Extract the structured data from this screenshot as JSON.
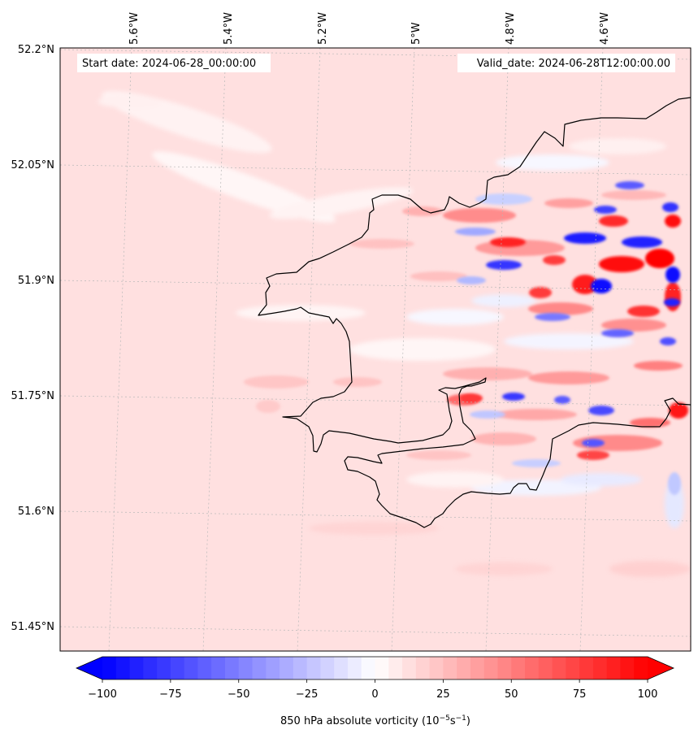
{
  "header": {
    "start_label": "Start date: 2024-06-28_00:00:00",
    "valid_label": "Valid_date: 2024-06-28T12:00:00.00"
  },
  "map": {
    "lon_labels": [
      "5.6°W",
      "5.4°W",
      "5.2°W",
      "5°W",
      "4.8°W",
      "4.6°W"
    ],
    "lat_labels": [
      "52.2°N",
      "52.05°N",
      "51.9°N",
      "51.75°N",
      "51.6°N",
      "51.45°N"
    ],
    "background_color": "#ffe0e0",
    "coastline_color": "#000000",
    "gridline_style": "dotted"
  },
  "colorbar": {
    "label_prefix": "850 hPa absolute vorticity (10",
    "label_exp1": "−5",
    "label_mid": "s",
    "label_exp2": "−1",
    "label_suffix": ")",
    "ticks": [
      -100,
      -75,
      -50,
      -25,
      0,
      25,
      50,
      75,
      100
    ],
    "tick_labels": [
      "−100",
      "−75",
      "−50",
      "−25",
      "0",
      "25",
      "50",
      "75",
      "100"
    ],
    "min": -100,
    "max": 100,
    "step": 5,
    "extend": "both",
    "cmap": "bwr",
    "min_color": "#0000ff",
    "mid_color": "#ffffff",
    "max_color": "#ff0000"
  }
}
